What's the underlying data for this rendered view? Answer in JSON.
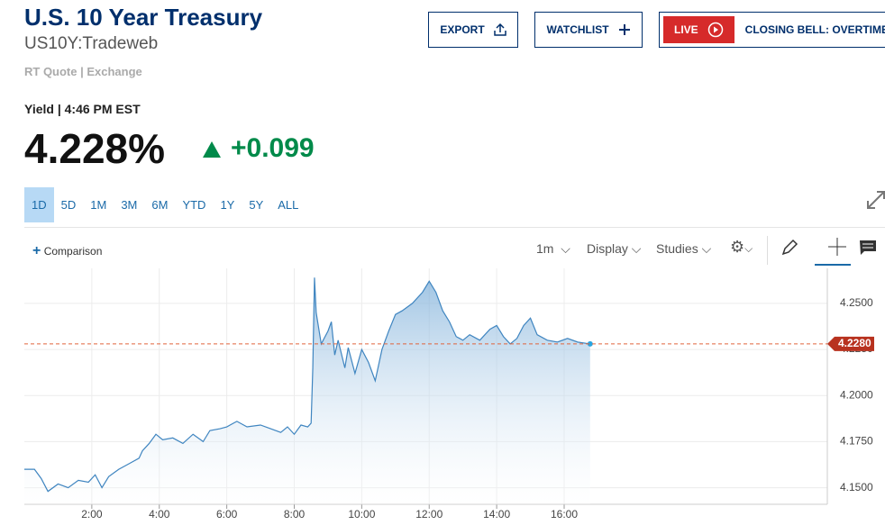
{
  "header": {
    "title": "U.S. 10 Year Treasury",
    "symbol": "US10Y:Tradeweb",
    "quote_source": "RT Quote | Exchange",
    "buttons": [
      "EXPORT",
      "WATCHLIST"
    ],
    "live": "LIVE",
    "live_show": "CLOSING BELL: OVERTIME"
  },
  "quote": {
    "label": "Yield | 4:46 PM EST",
    "price": "4.228%",
    "change": "+0.099"
  },
  "ranges": [
    "1D",
    "5D",
    "1M",
    "3M",
    "6M",
    "YTD",
    "1Y",
    "5Y",
    "ALL"
  ],
  "toolbar": {
    "comparison": "Comparison",
    "interval": "1m",
    "display": "Display",
    "studies": "Studies"
  },
  "chart_data": {
    "type": "area",
    "color": "#3f85c0",
    "x": [
      0,
      0.3,
      0.5,
      0.7,
      1.0,
      1.3,
      1.6,
      1.9,
      2.1,
      2.3,
      2.5,
      2.8,
      3.1,
      3.4,
      3.5,
      3.7,
      3.9,
      4.1,
      4.4,
      4.7,
      5.0,
      5.3,
      5.5,
      5.8,
      6.0,
      6.3,
      6.6,
      7.0,
      7.3,
      7.6,
      7.8,
      8.0,
      8.2,
      8.4,
      8.5,
      8.55,
      8.6,
      8.65,
      8.8,
      9.0,
      9.1,
      9.2,
      9.3,
      9.5,
      9.6,
      9.8,
      10.0,
      10.2,
      10.4,
      10.6,
      10.8,
      11.0,
      11.2,
      11.5,
      11.8,
      12.0,
      12.2,
      12.4,
      12.6,
      12.8,
      13.0,
      13.2,
      13.5,
      13.8,
      14.0,
      14.2,
      14.4,
      14.6,
      14.8,
      15.0,
      15.2,
      15.5,
      15.8,
      16.1,
      16.4,
      16.77
    ],
    "values": [
      4.16,
      4.16,
      4.155,
      4.148,
      4.152,
      4.15,
      4.154,
      4.153,
      4.157,
      4.15,
      4.156,
      4.16,
      4.163,
      4.166,
      4.17,
      4.174,
      4.179,
      4.176,
      4.177,
      4.174,
      4.179,
      4.175,
      4.181,
      4.182,
      4.183,
      4.186,
      4.183,
      4.184,
      4.182,
      4.18,
      4.183,
      4.179,
      4.184,
      4.183,
      4.185,
      4.215,
      4.264,
      4.245,
      4.228,
      4.235,
      4.24,
      4.222,
      4.23,
      4.215,
      4.226,
      4.212,
      4.225,
      4.218,
      4.208,
      4.225,
      4.235,
      4.244,
      4.246,
      4.25,
      4.256,
      4.262,
      4.256,
      4.246,
      4.24,
      4.232,
      4.23,
      4.233,
      4.23,
      4.236,
      4.238,
      4.232,
      4.228,
      4.231,
      4.238,
      4.242,
      4.233,
      4.23,
      4.229,
      4.231,
      4.229,
      4.228
    ],
    "xlim": [
      0,
      23.8
    ],
    "ylim": [
      4.141,
      4.269
    ],
    "xticks": [
      {
        "value": 2,
        "label": "2:00"
      },
      {
        "value": 4,
        "label": "4:00"
      },
      {
        "value": 6,
        "label": "6:00"
      },
      {
        "value": 8,
        "label": "8:00"
      },
      {
        "value": 10,
        "label": "10:00"
      },
      {
        "value": 12,
        "label": "12:00"
      },
      {
        "value": 14,
        "label": "14:00"
      },
      {
        "value": 16,
        "label": "16:00"
      }
    ],
    "yticks": [
      {
        "value": 4.15,
        "label": "4.1500"
      },
      {
        "value": 4.175,
        "label": "4.1750"
      },
      {
        "value": 4.2,
        "label": "4.2000"
      },
      {
        "value": 4.225,
        "label": "4.2250"
      },
      {
        "value": 4.25,
        "label": "4.2500"
      }
    ],
    "last_value": {
      "value": 4.228,
      "label": "4.2280"
    },
    "grid": true
  }
}
